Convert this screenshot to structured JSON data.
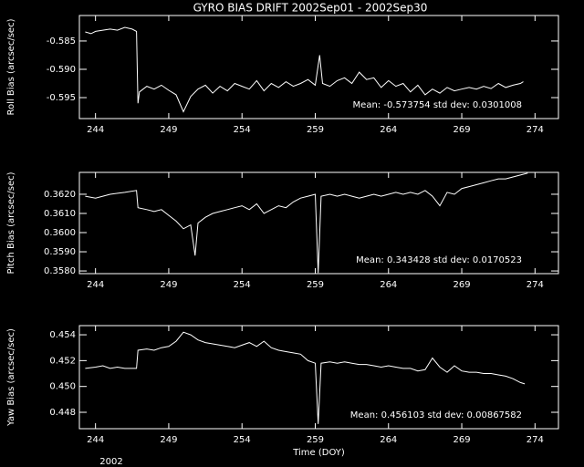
{
  "chart_data": [
    {
      "type": "line",
      "title": "GYRO BIAS DRIFT 2002Sep01 - 2002Sep30",
      "y_label": "Roll Bias (arcsec/sec)",
      "annotation": "Mean: -0.573754 std dev: 0.0301008",
      "xlim": [
        242.9,
        275.6
      ],
      "xticks": [
        244,
        249,
        254,
        259,
        264,
        269,
        274
      ],
      "ylim": [
        -0.5987,
        -0.5805
      ],
      "yticks": [
        -0.585,
        {
          "value": -0.59,
          "label": "-0.590"
        },
        -0.595
      ],
      "series": [
        {
          "color": "#ffffff",
          "x": [
            243.3,
            243.7,
            244,
            244.5,
            245,
            245.5,
            246,
            246.5,
            246.8,
            246.9,
            247,
            247.5,
            248,
            248.5,
            249,
            249.5,
            250,
            250.5,
            251,
            251.5,
            252,
            252.5,
            253,
            253.5,
            254,
            254.5,
            255,
            255.5,
            256,
            256.5,
            257,
            257.5,
            258,
            258.5,
            259,
            259.3,
            259.5,
            260,
            260.5,
            261,
            261.5,
            262,
            262.5,
            263,
            263.5,
            264,
            264.5,
            265,
            265.5,
            266,
            266.5,
            267,
            267.5,
            268,
            268.5,
            269,
            269.5,
            270,
            270.5,
            271,
            271.5,
            272,
            272.5,
            273,
            273.2
          ],
          "values": [
            -0.5834,
            -0.5837,
            -0.5833,
            -0.5831,
            -0.5829,
            -0.5831,
            -0.5826,
            -0.5829,
            -0.5833,
            -0.596,
            -0.594,
            -0.593,
            -0.5935,
            -0.5928,
            -0.5937,
            -0.5945,
            -0.5975,
            -0.5948,
            -0.5935,
            -0.5928,
            -0.5942,
            -0.593,
            -0.5938,
            -0.5925,
            -0.593,
            -0.5935,
            -0.592,
            -0.5938,
            -0.5925,
            -0.5932,
            -0.5922,
            -0.593,
            -0.5925,
            -0.5918,
            -0.5928,
            -0.5875,
            -0.5925,
            -0.593,
            -0.592,
            -0.5915,
            -0.5925,
            -0.5905,
            -0.5918,
            -0.5915,
            -0.5932,
            -0.592,
            -0.593,
            -0.5925,
            -0.594,
            -0.5928,
            -0.5945,
            -0.5935,
            -0.5942,
            -0.5932,
            -0.5938,
            -0.5935,
            -0.5932,
            -0.5935,
            -0.593,
            -0.5934,
            -0.5925,
            -0.5932,
            -0.5928,
            -0.5925,
            -0.5922
          ]
        }
      ]
    },
    {
      "type": "line",
      "y_label": "Pitch Bias (arcsec/sec)",
      "annotation": "Mean: 0.343428 std dev: 0.0170523",
      "xlim": [
        242.9,
        275.6
      ],
      "xticks": [
        244,
        249,
        254,
        259,
        264,
        269,
        274
      ],
      "ylim": [
        0.35786,
        0.36314
      ],
      "yticks": [
        {
          "value": 0.358,
          "label": "0.3580"
        },
        {
          "value": 0.359,
          "label": "0.3590"
        },
        {
          "value": 0.36,
          "label": "0.3600"
        },
        {
          "value": 0.361,
          "label": "0.3610"
        },
        {
          "value": 0.362,
          "label": "0.3620"
        }
      ],
      "series": [
        {
          "color": "#ffffff",
          "x": [
            243.3,
            244,
            244.5,
            245,
            246,
            246.8,
            246.9,
            247.5,
            248,
            248.5,
            249,
            249.5,
            250,
            250.5,
            250.8,
            251,
            251.5,
            252,
            252.5,
            253,
            253.5,
            254,
            254.5,
            255,
            255.5,
            256,
            256.5,
            257,
            257.5,
            258,
            258.5,
            259,
            259.2,
            259.4,
            260,
            260.5,
            261,
            261.5,
            262,
            262.5,
            263,
            263.5,
            264,
            264.5,
            265,
            265.5,
            266,
            266.5,
            267,
            267.5,
            268,
            268.5,
            269,
            269.5,
            270,
            270.5,
            271,
            271.5,
            272,
            272.5,
            273,
            273.5
          ],
          "values": [
            0.3619,
            0.3618,
            0.3619,
            0.362,
            0.3621,
            0.3622,
            0.3613,
            0.3612,
            0.3611,
            0.3612,
            0.3609,
            0.3606,
            0.3602,
            0.3604,
            0.3588,
            0.3605,
            0.3608,
            0.361,
            0.3611,
            0.3612,
            0.3613,
            0.3614,
            0.3612,
            0.3615,
            0.361,
            0.3612,
            0.3614,
            0.3613,
            0.3616,
            0.3618,
            0.3619,
            0.362,
            0.3579,
            0.3619,
            0.362,
            0.3619,
            0.362,
            0.3619,
            0.3618,
            0.3619,
            0.362,
            0.3619,
            0.362,
            0.3621,
            0.362,
            0.3621,
            0.362,
            0.3622,
            0.3619,
            0.3614,
            0.3621,
            0.362,
            0.3623,
            0.3624,
            0.3625,
            0.3626,
            0.3627,
            0.3628,
            0.3628,
            0.3629,
            0.363,
            0.3631
          ]
        }
      ]
    },
    {
      "type": "line",
      "y_label": "Yaw Bias (arcsec/sec)",
      "x_label": "Time (DOY)",
      "year_label": "2002",
      "annotation": "Mean: 0.456103 std dev: 0.00867582",
      "xlim": [
        242.9,
        275.6
      ],
      "xticks": [
        244,
        249,
        254,
        259,
        264,
        269,
        274
      ],
      "ylim": [
        0.44673,
        0.45471
      ],
      "yticks": [
        0.448,
        {
          "value": 0.45,
          "label": "0.450"
        },
        0.452,
        0.454
      ],
      "series": [
        {
          "color": "#ffffff",
          "x": [
            243.3,
            244,
            244.5,
            245,
            245.5,
            246,
            246.8,
            246.9,
            247.5,
            248,
            248.5,
            249,
            249.5,
            250,
            250.5,
            251,
            251.5,
            252,
            252.5,
            253,
            253.5,
            254,
            254.5,
            255,
            255.5,
            256,
            256.5,
            257,
            257.5,
            258,
            258.5,
            259,
            259.2,
            259.4,
            260,
            260.5,
            261,
            261.5,
            262,
            262.5,
            263,
            263.5,
            264,
            264.5,
            265,
            265.5,
            266,
            266.5,
            267,
            267.5,
            268,
            268.5,
            269,
            269.5,
            270,
            270.5,
            271,
            271.5,
            272,
            272.5,
            273,
            273.3
          ],
          "values": [
            0.4514,
            0.4515,
            0.4516,
            0.4514,
            0.4515,
            0.4514,
            0.4514,
            0.4528,
            0.4529,
            0.4528,
            0.453,
            0.4531,
            0.4535,
            0.4542,
            0.454,
            0.4536,
            0.4534,
            0.4533,
            0.4532,
            0.4531,
            0.453,
            0.4532,
            0.4534,
            0.4531,
            0.4535,
            0.453,
            0.4528,
            0.4527,
            0.4526,
            0.4525,
            0.452,
            0.4518,
            0.4471,
            0.4518,
            0.4519,
            0.4518,
            0.4519,
            0.4518,
            0.4517,
            0.4517,
            0.4516,
            0.4515,
            0.4516,
            0.4515,
            0.4514,
            0.4514,
            0.4512,
            0.4513,
            0.4522,
            0.4515,
            0.4511,
            0.4516,
            0.4512,
            0.4511,
            0.4511,
            0.451,
            0.451,
            0.4509,
            0.4508,
            0.4506,
            0.4503,
            0.4502
          ]
        }
      ]
    }
  ]
}
